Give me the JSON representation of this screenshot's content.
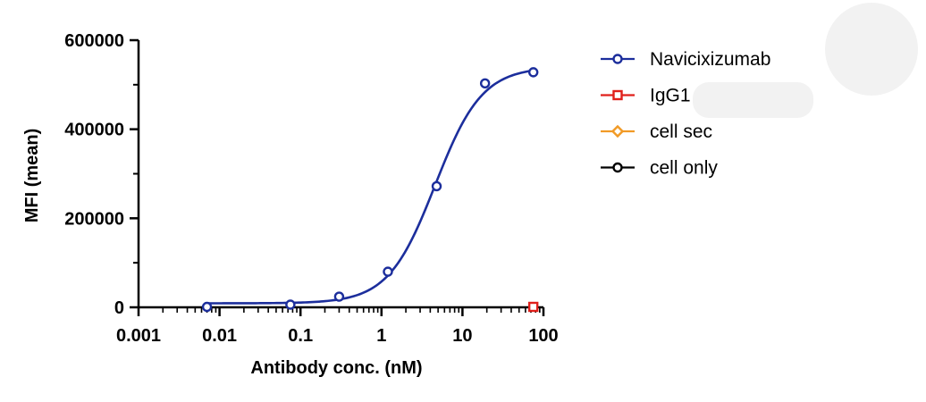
{
  "chart_data": {
    "type": "scatter",
    "xlabel": "Antibody conc. (nM)",
    "ylabel": "MFI (mean)",
    "xscale": "log",
    "xlim": [
      0.001,
      100
    ],
    "ylim": [
      0,
      600000
    ],
    "xticks": [
      "0.001",
      "0.01",
      "0.1",
      "1",
      "10",
      "100"
    ],
    "yticks": [
      "0",
      "200000",
      "400000",
      "600000"
    ],
    "grid": false,
    "legend": "right",
    "series": [
      {
        "name": "Navicixizumab",
        "color": "#1c2e9c",
        "marker": "circle-open",
        "fit": "sigmoidal",
        "x": [
          0.007,
          0.075,
          0.3,
          1.2,
          4.8,
          19,
          75
        ],
        "y": [
          1000,
          6000,
          24000,
          80000,
          272000,
          503000,
          528000
        ]
      },
      {
        "name": "IgG1",
        "color": "#e0201b",
        "marker": "square-open",
        "x": [
          75
        ],
        "y": [
          1000
        ]
      },
      {
        "name": "cell sec",
        "color": "#f19a26",
        "marker": "diamond-open",
        "x": [],
        "y": []
      },
      {
        "name": "cell only",
        "color": "#000000",
        "marker": "circle-open",
        "x": [],
        "y": []
      }
    ]
  }
}
